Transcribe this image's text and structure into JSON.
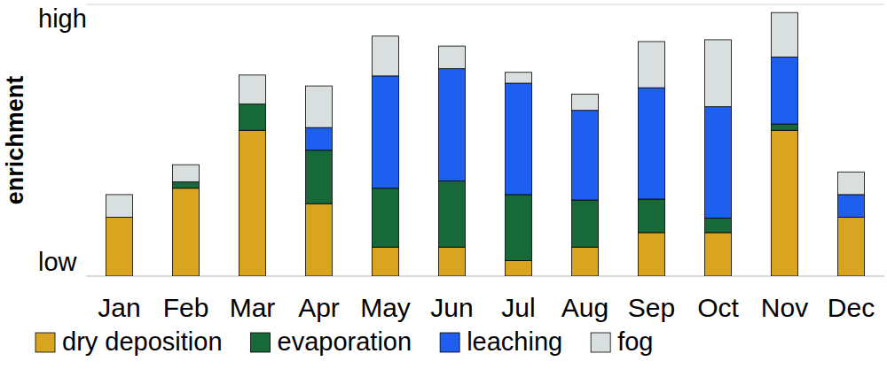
{
  "chart_data": {
    "type": "bar",
    "stacked": true,
    "grid": true,
    "legend": "bottom",
    "y_label": "enrichment",
    "categories": [
      "Jan",
      "Feb",
      "Mar",
      "Apr",
      "May",
      "Jun",
      "Jul",
      "Aug",
      "Sep",
      "Oct",
      "Nov",
      "Dec"
    ],
    "series": [
      {
        "name": "dry deposition",
        "color": "#d9a521",
        "values": [
          0.65,
          0.97,
          1.61,
          0.8,
          0.32,
          0.32,
          0.17,
          0.32,
          0.48,
          0.48,
          1.61,
          0.65
        ]
      },
      {
        "name": "evaporation",
        "color": "#17693a",
        "values": [
          0,
          0.07,
          0.29,
          0.59,
          0.65,
          0.73,
          0.73,
          0.52,
          0.37,
          0.16,
          0.07,
          0
        ]
      },
      {
        "name": "leaching",
        "color": "#1f5ff0",
        "values": [
          0,
          0,
          0,
          0.25,
          1.24,
          1.24,
          1.23,
          0.99,
          1.23,
          1.23,
          0.74,
          0.25
        ]
      },
      {
        "name": "fog",
        "color": "#d9dedf",
        "values": [
          0.25,
          0.19,
          0.32,
          0.46,
          0.44,
          0.25,
          0.12,
          0.18,
          0.51,
          0.74,
          0.49,
          0.25
        ]
      }
    ],
    "ylim": [
      0,
      3
    ],
    "yticks": [
      {
        "value": 0,
        "label": "low"
      },
      {
        "value": 3,
        "label": "high"
      }
    ]
  }
}
